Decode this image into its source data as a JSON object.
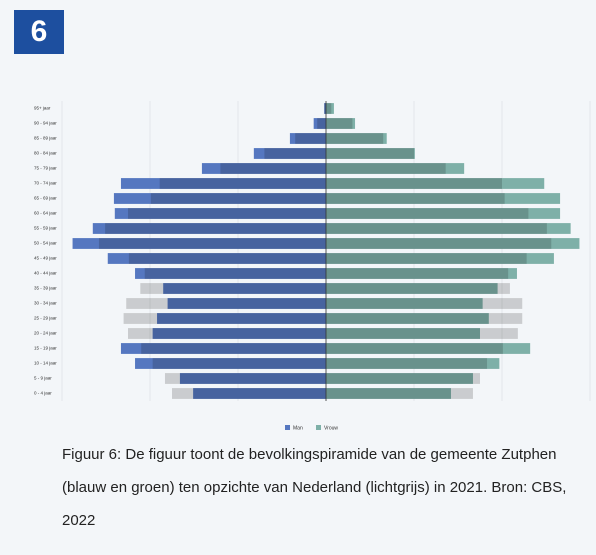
{
  "badge": "6",
  "caption": "Figuur 6: De figuur toont de bevolkingspiramide van de gemeente Zutphen (blauw en groen) ten opzichte van Nederland (lichtgrijs) in 2021. Bron: CBS, 2022",
  "chart_data": {
    "type": "pyramid",
    "categories": [
      "95+ jaar",
      "90 - 94 jaar",
      "85 - 89 jaar",
      "80 - 84 jaar",
      "75 - 79 jaar",
      "70 - 74 jaar",
      "65 - 69 jaar",
      "60 - 64 jaar",
      "55 - 59 jaar",
      "50 - 54 jaar",
      "45 - 49 jaar",
      "40 - 44 jaar",
      "35 - 39 jaar",
      "30 - 34 jaar",
      "25 - 29 jaar",
      "20 - 24 jaar",
      "15 - 19 jaar",
      "10 - 14 jaar",
      "5 - 9 jaar",
      "0 - 4 jaar"
    ],
    "series": [
      {
        "name": "Man",
        "color": "#5577c0",
        "values": [
          0.02,
          0.14,
          0.41,
          0.82,
          1.41,
          2.33,
          2.41,
          2.4,
          2.65,
          2.88,
          2.48,
          2.17,
          1.85,
          1.8,
          1.92,
          1.97,
          2.33,
          2.17,
          1.66,
          1.51
        ]
      },
      {
        "name": "Vrouw",
        "color": "#7eb0a8",
        "values": [
          0.09,
          0.33,
          0.69,
          1.01,
          1.57,
          2.48,
          2.66,
          2.66,
          2.78,
          2.88,
          2.59,
          2.17,
          1.95,
          1.78,
          1.85,
          1.75,
          2.32,
          1.97,
          1.67,
          1.42
        ]
      }
    ],
    "reference": {
      "color": "#d4d4d4",
      "male": [
        0.02,
        0.1,
        0.35,
        0.7,
        1.2,
        1.89,
        1.99,
        2.25,
        2.51,
        2.58,
        2.24,
        2.06,
        2.11,
        2.27,
        2.3,
        2.25,
        2.1,
        1.97,
        1.83,
        1.75
      ],
      "female": [
        0.06,
        0.3,
        0.65,
        1.0,
        1.36,
        2.0,
        2.03,
        2.3,
        2.51,
        2.56,
        2.28,
        2.07,
        2.09,
        2.23,
        2.23,
        2.18,
        2.01,
        1.83,
        1.75,
        1.67
      ]
    },
    "xlim": [
      -3,
      3
    ],
    "xticks": [
      -3,
      -2,
      -1,
      0,
      1,
      2,
      3
    ],
    "grid": true
  }
}
